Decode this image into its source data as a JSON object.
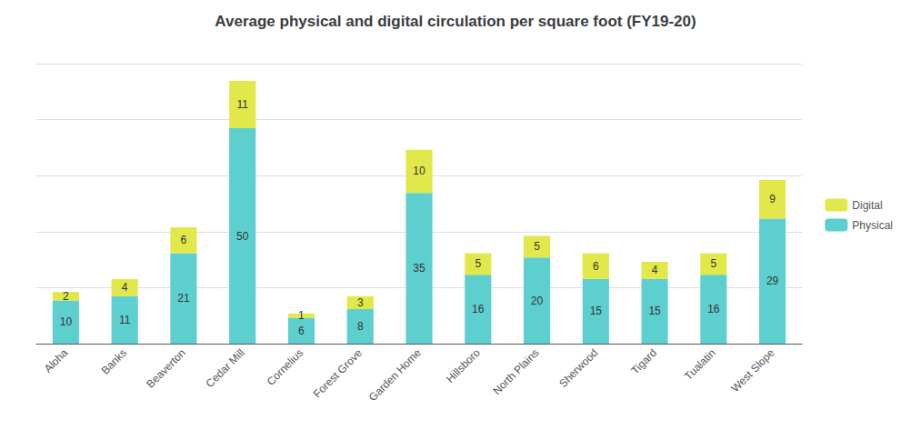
{
  "chart_data": {
    "type": "bar",
    "title": "Average physical and digital circulation per square foot (FY19-20)",
    "categories": [
      "Aloha",
      "Banks",
      "Beaverton",
      "Cedar Mill",
      "Cornelius",
      "Forest Grove",
      "Garden Home",
      "Hillsboro",
      "North Plains",
      "Sherwood",
      "Tigard",
      "Tualatin",
      "West Slope"
    ],
    "series": [
      {
        "name": "Physical",
        "color": "#5DCFCF",
        "values": [
          10,
          11,
          21,
          50,
          6,
          8,
          35,
          16,
          20,
          15,
          15,
          16,
          29
        ]
      },
      {
        "name": "Digital",
        "color": "#E2E84A",
        "values": [
          2,
          4,
          6,
          11,
          1,
          3,
          10,
          5,
          5,
          6,
          4,
          5,
          9
        ]
      }
    ],
    "stacked": true,
    "data_labels": true,
    "ylim": [
      0,
      65
    ],
    "yticks": [
      0,
      13,
      26,
      39,
      52,
      65
    ],
    "grid": true,
    "legend": "right",
    "tick_labels": "x"
  }
}
